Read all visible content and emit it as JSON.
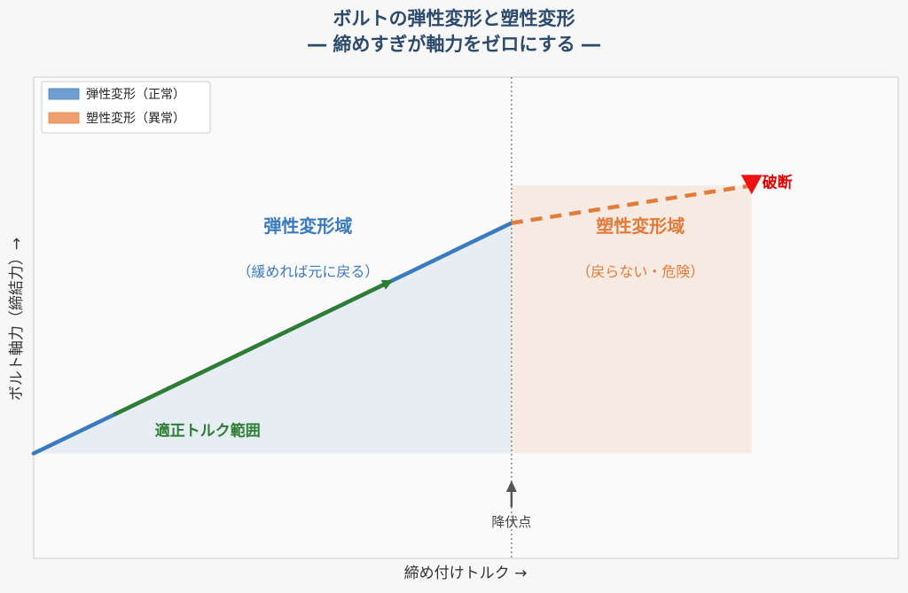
{
  "chart_data": {
    "type": "line",
    "title": "ボルトの弾性変形と塑性変形",
    "subtitle": "― 締めすぎが軸力をゼロにする ―",
    "xlabel": "締め付けトルク →",
    "ylabel": "ボルト軸力（締結力）→",
    "xlim": [
      0,
      100
    ],
    "ylim": [
      0,
      100
    ],
    "grid": false,
    "legend_position": "top-left",
    "legend": [
      {
        "label": "弾性変形（正常）",
        "color": "#6f9fd1"
      },
      {
        "label": "塑性変形（異常）",
        "color": "#f0a070"
      }
    ],
    "series": [
      {
        "style": "solid",
        "color": "#3a7bbf",
        "points": [
          [
            0,
            16.7
          ],
          [
            56.9,
            72
          ]
        ]
      },
      {
        "style": "dashed",
        "color": "#e07b39",
        "points": [
          [
            56.9,
            72
          ],
          [
            85.5,
            81
          ]
        ]
      }
    ],
    "ranges": [
      {
        "label": "適正トルク範囲",
        "color": "#2e7d32",
        "x": [
          9.6,
          42.4
        ]
      }
    ],
    "regions": [
      {
        "title": "弾性変形域",
        "subtitle": "（緩めれば元に戻る）",
        "color": "#3a7bbf",
        "x": [
          0,
          56.9
        ]
      },
      {
        "title": "塑性変形域",
        "subtitle": "（戻らない・危険）",
        "color": "#e07b39",
        "x": [
          56.9,
          85.5
        ]
      }
    ],
    "annotations": [
      {
        "label": "降伏点",
        "x": 56.9
      },
      {
        "label": "破断",
        "x": 85.5,
        "y": 81,
        "color": "#dd0000"
      }
    ]
  }
}
